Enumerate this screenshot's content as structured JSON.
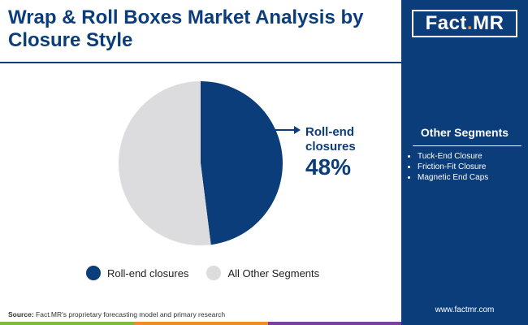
{
  "title": "Wrap & Roll Boxes Market Analysis by Closure Style",
  "logo": {
    "part1": "Fact",
    "dot": ".",
    "part2": "MR"
  },
  "other_segments": {
    "title": "Other Segments",
    "items": [
      "Tuck-End Closure",
      "Friction-Fit Closure",
      "Magnetic End Caps"
    ]
  },
  "website": "www.factmr.com",
  "source": {
    "label": "Source:",
    "text": "Fact.MR's proprietary forecasting model and primary research"
  },
  "callout": {
    "label": "Roll-end closures",
    "value": "48%"
  },
  "colors": {
    "primary": "#0b3d7a",
    "secondary": "#dcdcde",
    "accent": "#f28c28",
    "bar": [
      "#7dbd3b",
      "#f28c28",
      "#0b3d7a",
      "#7b3fa0"
    ]
  },
  "chart_data": {
    "type": "pie",
    "title": "Wrap & Roll Boxes Market Analysis by Closure Style",
    "slices": [
      {
        "label": "Roll-end closures",
        "value": 48,
        "color": "#0b3d7a"
      },
      {
        "label": "All Other Segments",
        "value": 52,
        "color": "#dcdcde"
      }
    ],
    "legend": [
      "Roll-end closures",
      "All Other Segments"
    ],
    "legend_position": "bottom"
  }
}
